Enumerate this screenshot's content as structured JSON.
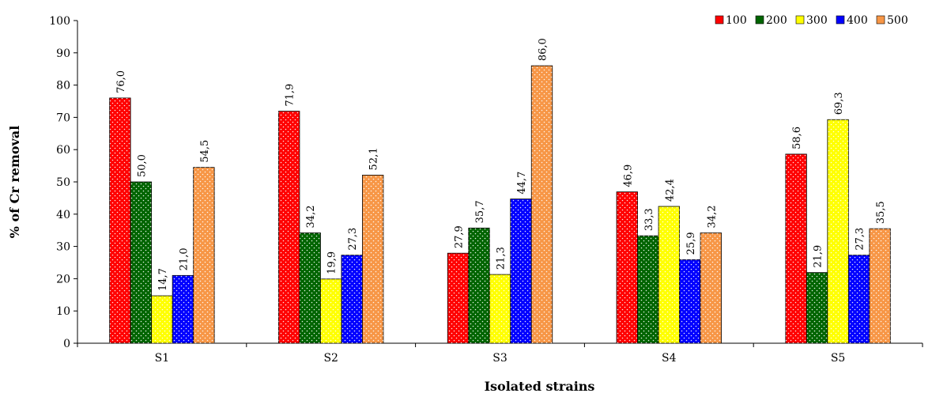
{
  "chart_data": {
    "type": "bar",
    "title": "",
    "xlabel": "Isolated strains",
    "ylabel": "% of Cr removal",
    "categories": [
      "S1",
      "S2",
      "S3",
      "S4",
      "S5"
    ],
    "ylim": [
      0,
      100
    ],
    "yticks": [
      "0",
      "10",
      "20",
      "30",
      "40",
      "50",
      "60",
      "70",
      "80",
      "90",
      "100"
    ],
    "grid": false,
    "legend_position": "top-right",
    "series": [
      {
        "name": "100",
        "color": "#ff0000",
        "values": [
          76.0,
          71.9,
          27.9,
          46.9,
          58.6
        ],
        "labels": [
          "76,0",
          "71,9",
          "27,9",
          "46,9",
          "58,6"
        ]
      },
      {
        "name": "200",
        "color": "#006400",
        "values": [
          50.0,
          34.2,
          35.7,
          33.3,
          21.9
        ],
        "labels": [
          "50,0",
          "34,2",
          "35,7",
          "33,3",
          "21,9"
        ]
      },
      {
        "name": "300",
        "color": "#ffff00",
        "values": [
          14.7,
          19.9,
          21.3,
          42.4,
          69.3
        ],
        "labels": [
          "14,7",
          "19,9",
          "21,3",
          "42,4",
          "69,3"
        ]
      },
      {
        "name": "400",
        "color": "#0000ff",
        "values": [
          21.0,
          27.3,
          44.7,
          25.9,
          27.3
        ],
        "labels": [
          "21,0",
          "27,3",
          "44,7",
          "25,9",
          "27,3"
        ]
      },
      {
        "name": "500",
        "color": "#f79646",
        "values": [
          54.5,
          52.1,
          86.0,
          34.2,
          35.5
        ],
        "labels": [
          "54,5",
          "52,1",
          "86,0",
          "34,2",
          "35,5"
        ]
      }
    ]
  }
}
